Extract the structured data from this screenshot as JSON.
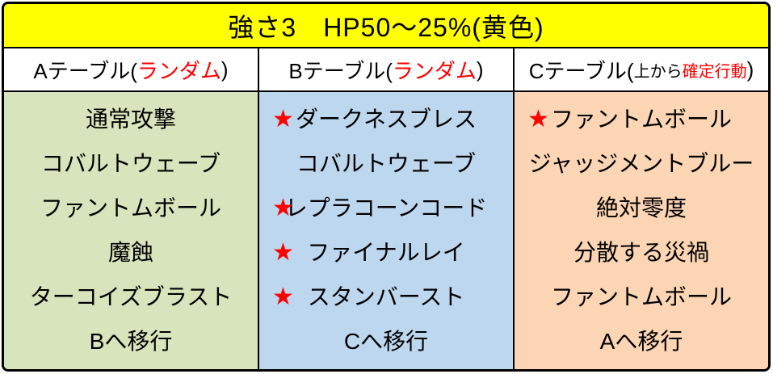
{
  "title": "強さ3　HP50～25%(黄色)",
  "icons": {
    "star": "★"
  },
  "colors": {
    "title_bg": "#FFFF00",
    "col_a_bg": "#D8E4BC",
    "col_b_bg": "#BDD7EE",
    "col_c_bg": "#FCD5B4",
    "accent_red": "#FF0000",
    "border": "#000000"
  },
  "columns": [
    {
      "id": "A",
      "header": {
        "prefix": "Aテーブル(",
        "small": "",
        "highlight": "ランダム",
        "suffix": ")"
      },
      "items": [
        {
          "text": "通常攻撃",
          "star": false
        },
        {
          "text": "コバルトウェーブ",
          "star": false
        },
        {
          "text": "ファントムボール",
          "star": false
        },
        {
          "text": "魔蝕",
          "star": false
        },
        {
          "text": "ターコイズブラスト",
          "star": false
        },
        {
          "text": "Bへ移行",
          "star": false
        }
      ]
    },
    {
      "id": "B",
      "header": {
        "prefix": "Bテーブル(",
        "small": "",
        "highlight": "ランダム",
        "suffix": ")"
      },
      "items": [
        {
          "text": "ダークネスブレス",
          "star": true
        },
        {
          "text": "コバルトウェーブ",
          "star": false
        },
        {
          "text": "レプラコーンコード",
          "star": true
        },
        {
          "text": "ファイナルレイ",
          "star": true
        },
        {
          "text": "スタンバースト",
          "star": true
        },
        {
          "text": "Cへ移行",
          "star": false
        }
      ]
    },
    {
      "id": "C",
      "header": {
        "prefix": "Cテーブル(",
        "small": "上から",
        "highlight": "確定行動",
        "suffix": ")"
      },
      "items": [
        {
          "text": "ファントムボール",
          "star": true
        },
        {
          "text": "ジャッジメントブルー",
          "star": false
        },
        {
          "text": "絶対零度",
          "star": false
        },
        {
          "text": "分散する災禍",
          "star": false
        },
        {
          "text": "ファントムボール",
          "star": false
        },
        {
          "text": "Aへ移行",
          "star": false
        }
      ]
    }
  ]
}
